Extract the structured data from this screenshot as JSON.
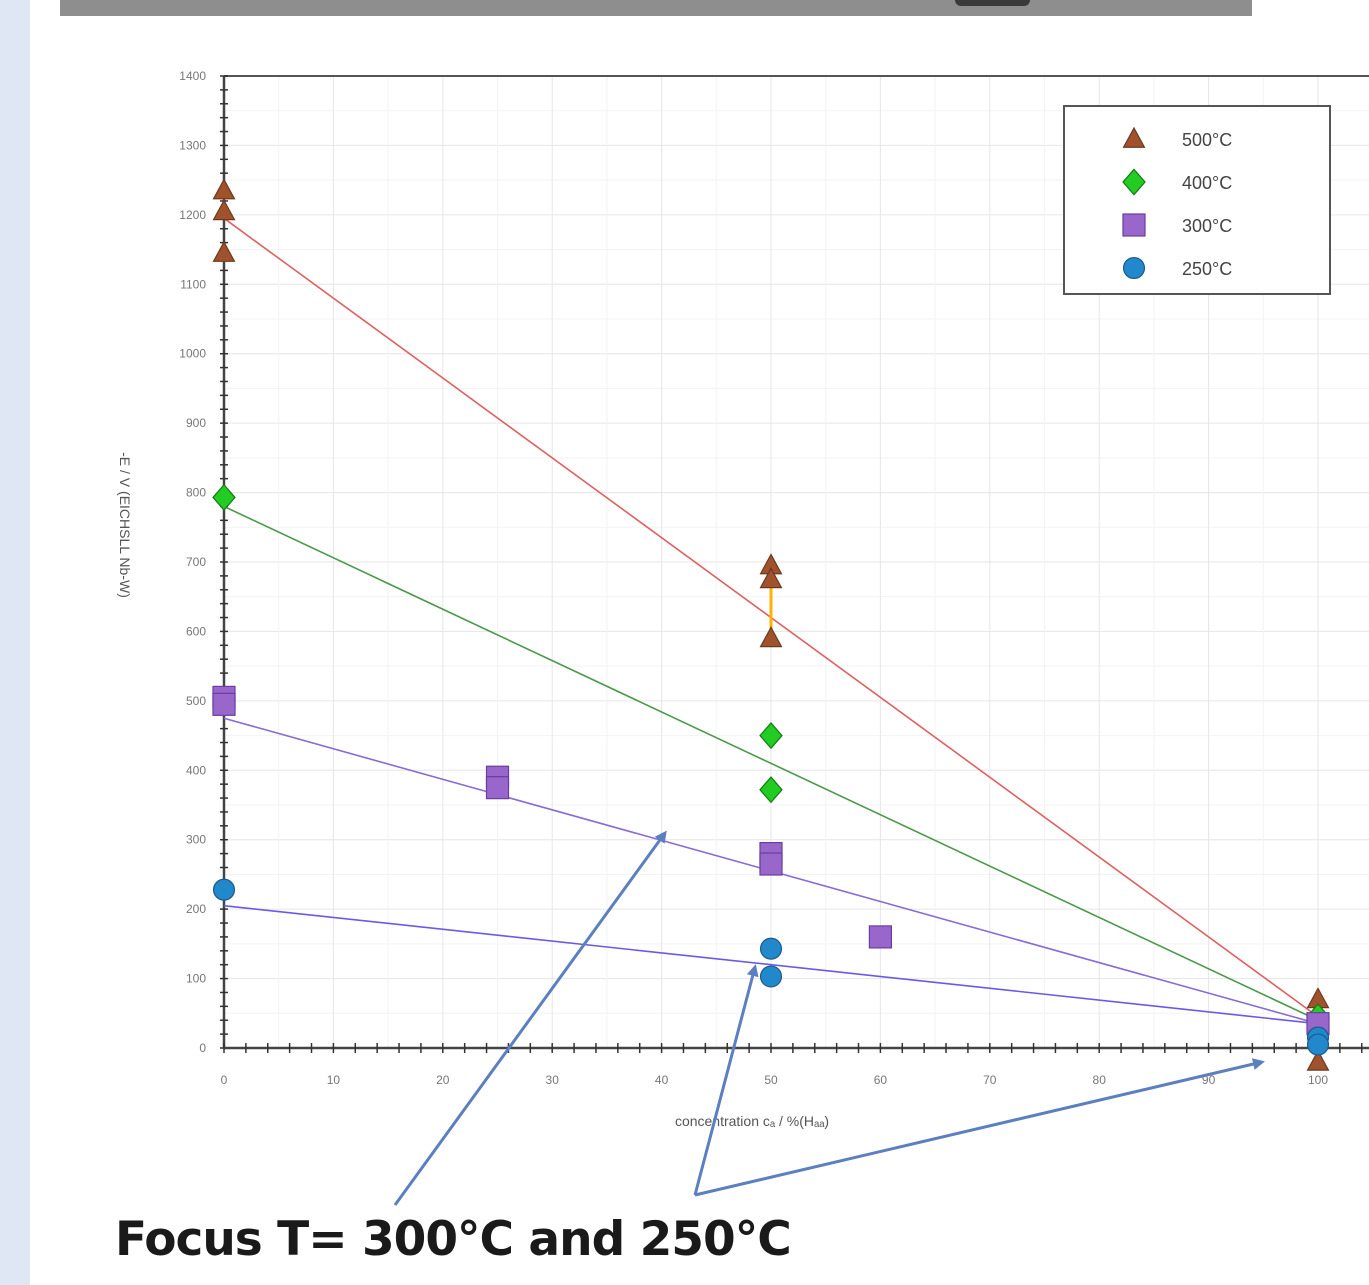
{
  "caption": "Focus T= 300°C and 250°C",
  "chart_data": {
    "type": "scatter",
    "xlabel": "concentration  cₐ / %(Hₐₐ)",
    "ylabel": "-E / V   (EICHSLL Nb-W)",
    "xlim": [
      0,
      100
    ],
    "ylim": [
      0,
      1400
    ],
    "x_ticks": [
      0,
      10,
      20,
      30,
      40,
      50,
      60,
      70,
      80,
      90,
      100
    ],
    "y_ticks": [
      0,
      100,
      200,
      300,
      400,
      500,
      600,
      700,
      800,
      900,
      1000,
      1100,
      1200,
      1300,
      1400
    ],
    "grid": true,
    "legend_position": "top-right",
    "series": [
      {
        "name": "500°C",
        "marker": "triangle",
        "color": "#a0522d",
        "line_color": "#e06060",
        "x": [
          0,
          0,
          0,
          50,
          50,
          50,
          100,
          100
        ],
        "y": [
          1235,
          1205,
          1145,
          695,
          675,
          590,
          70,
          -20
        ],
        "fit": [
          [
            0,
            1195
          ],
          [
            100,
            45
          ]
        ]
      },
      {
        "name": "400°C",
        "marker": "diamond",
        "color": "#22cc22",
        "line_color": "#4a9a4a",
        "x": [
          0,
          50,
          50,
          100
        ],
        "y": [
          793,
          450,
          372,
          45
        ],
        "fit": [
          [
            0,
            780
          ],
          [
            100,
            40
          ]
        ]
      },
      {
        "name": "300°C",
        "marker": "square",
        "color": "#9966cc",
        "line_color": "#8a6ad8",
        "x": [
          0,
          0,
          25,
          25,
          50,
          50,
          60,
          100
        ],
        "y": [
          505,
          495,
          390,
          375,
          280,
          265,
          160,
          35
        ],
        "fit": [
          [
            0,
            475
          ],
          [
            100,
            35
          ]
        ]
      },
      {
        "name": "250°C",
        "marker": "circle",
        "color": "#2288cc",
        "line_color": "#6a5ae6",
        "x": [
          0,
          50,
          50,
          100,
          100
        ],
        "y": [
          228,
          143,
          103,
          15,
          5
        ],
        "fit": [
          [
            0,
            205
          ],
          [
            100,
            35
          ]
        ]
      }
    ],
    "annotation_arrows": [
      {
        "from": [
          395,
          1205
        ],
        "to": [
          665,
          833
        ]
      },
      {
        "from": [
          695,
          1195
        ],
        "to": [
          755,
          967
        ]
      },
      {
        "from": [
          695,
          1195
        ],
        "to": [
          1262,
          1062
        ]
      }
    ]
  }
}
